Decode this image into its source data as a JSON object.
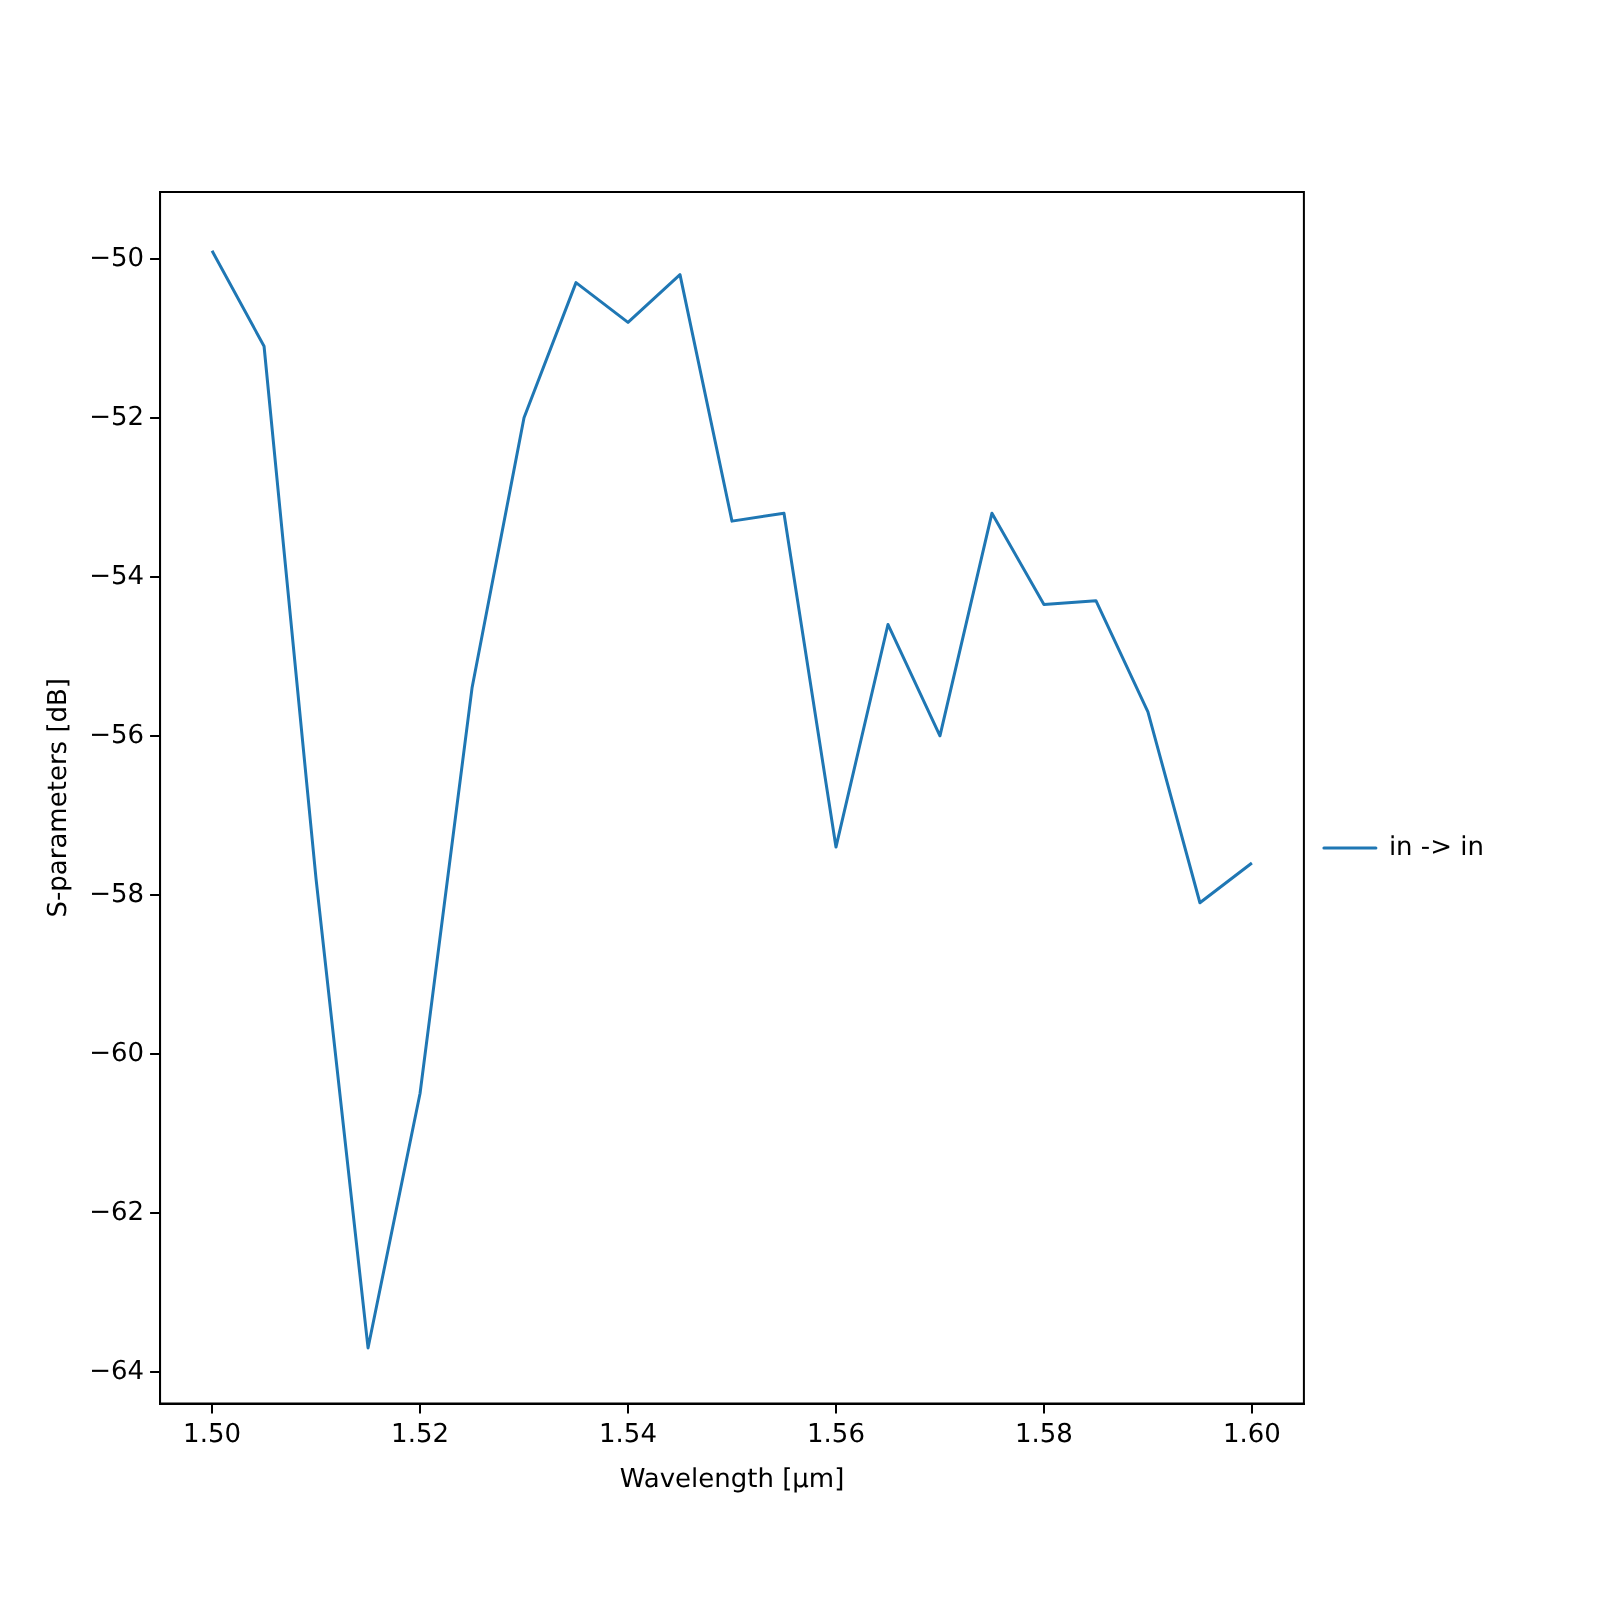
{
  "chart_data": {
    "type": "line",
    "xlabel": "Wavelength [μm]",
    "ylabel": "S-parameters [dB]",
    "x": [
      1.5,
      1.505,
      1.51,
      1.515,
      1.52,
      1.525,
      1.53,
      1.535,
      1.54,
      1.545,
      1.55,
      1.555,
      1.56,
      1.565,
      1.57,
      1.575,
      1.58,
      1.585,
      1.59,
      1.595,
      1.6
    ],
    "series": [
      {
        "name": "in -> in",
        "color": "#1f77b4",
        "values": [
          -49.9,
          -51.1,
          -57.8,
          -63.7,
          -60.5,
          -55.4,
          -52.0,
          -50.3,
          -50.8,
          -50.2,
          -53.3,
          -53.2,
          -57.4,
          -54.6,
          -56.0,
          -53.2,
          -54.35,
          -54.3,
          -55.7,
          -58.1,
          -57.6
        ]
      }
    ],
    "xlim": [
      1.495,
      1.605
    ],
    "xticks": [
      {
        "value": 1.5,
        "label": "1.50"
      },
      {
        "value": 1.52,
        "label": "1.52"
      },
      {
        "value": 1.54,
        "label": "1.54"
      },
      {
        "value": 1.56,
        "label": "1.56"
      },
      {
        "value": 1.58,
        "label": "1.58"
      },
      {
        "value": 1.6,
        "label": "1.60"
      }
    ],
    "ylim": [
      -64.4,
      -49.16
    ],
    "yticks": [
      -64,
      -62,
      -60,
      -58,
      -56,
      -54,
      -52,
      -50
    ],
    "grid": false,
    "legend": "right",
    "marker": "none",
    "line_style": "solid"
  }
}
